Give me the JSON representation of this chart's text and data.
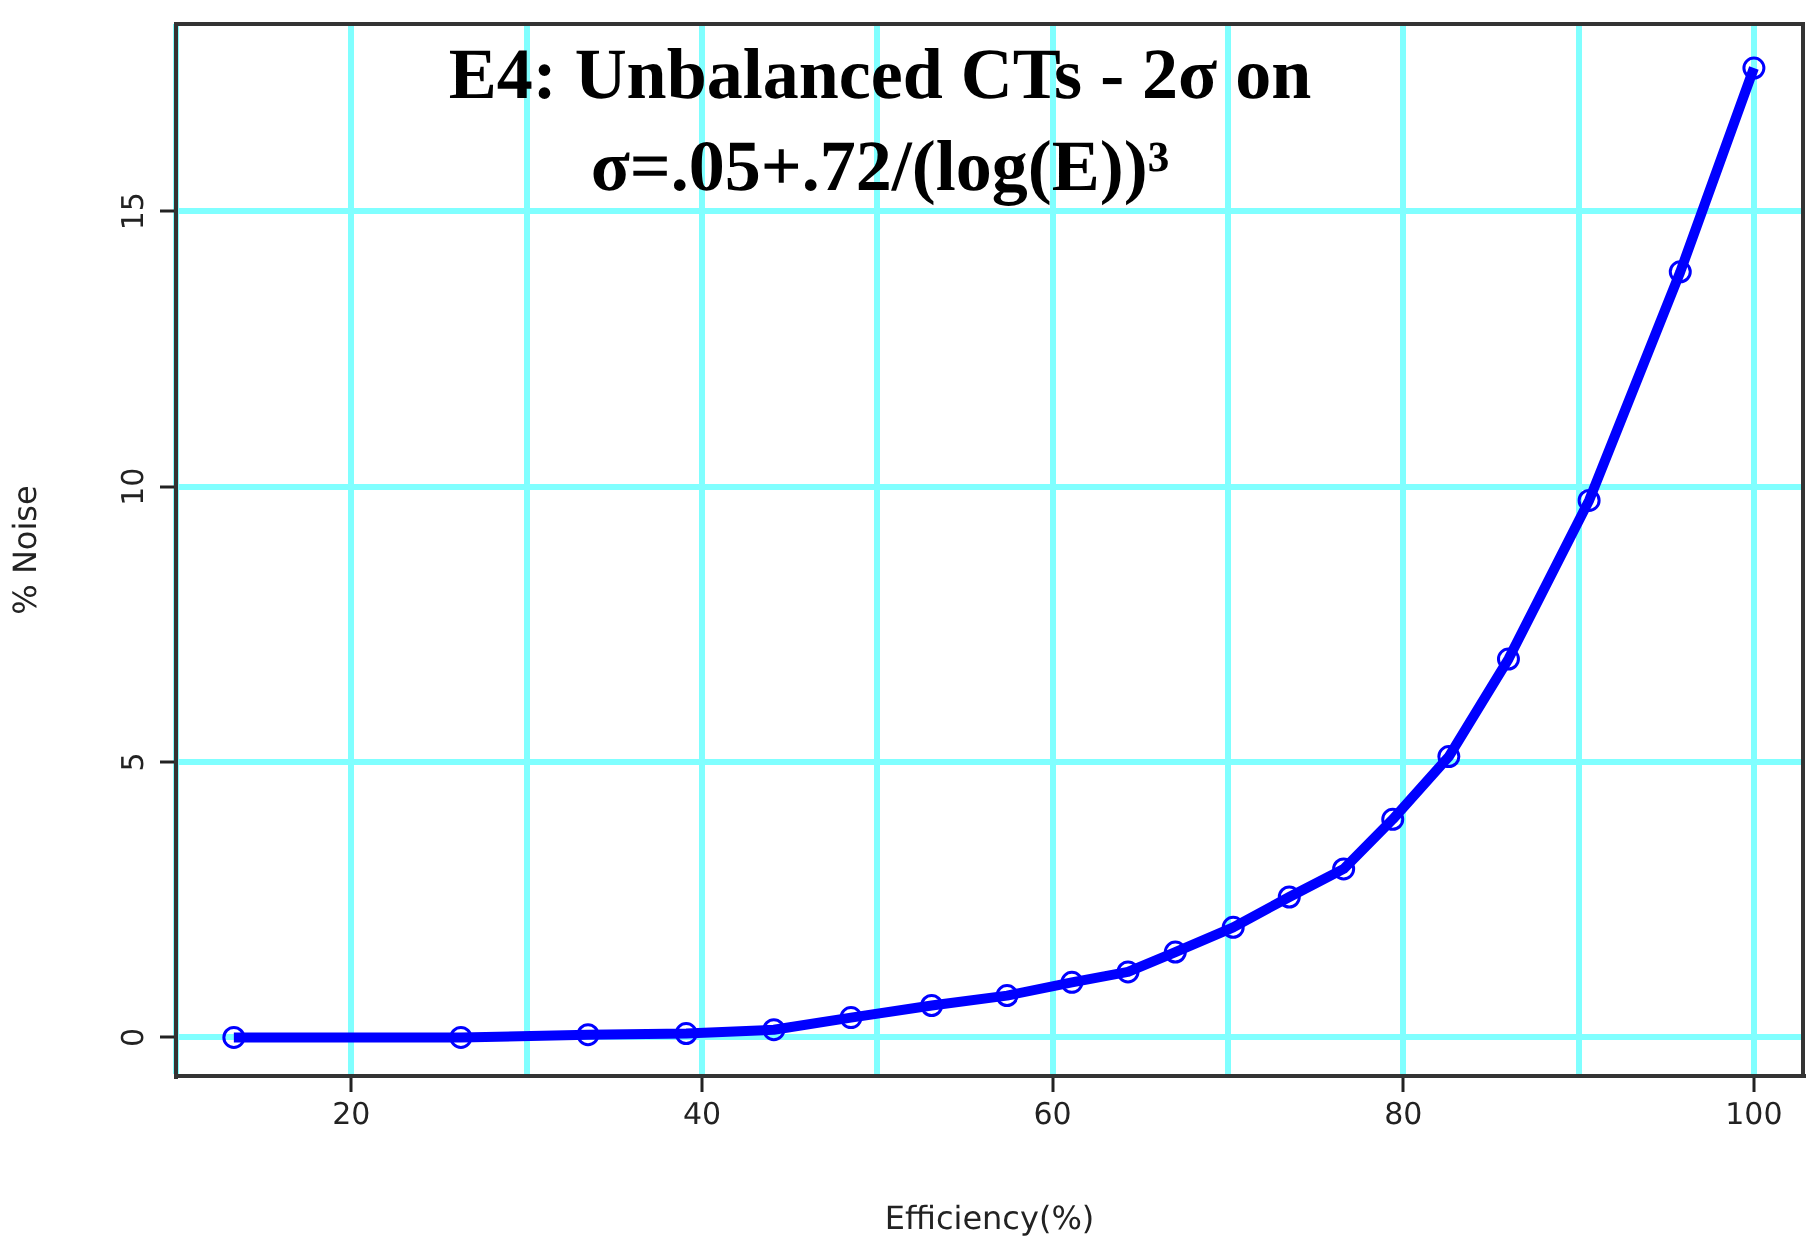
{
  "chart_data": {
    "type": "line",
    "title": "E4: Unbalanced CTs - 2σ on\nσ=.05+.72/(log(E))³",
    "xlabel": "Efficiency(%)",
    "ylabel": "% Noise",
    "x": [
      13.3,
      26.25,
      33.5,
      39.1,
      44.1,
      48.5,
      53.1,
      57.4,
      61.1,
      64.3,
      67.0,
      70.3,
      73.5,
      76.6,
      79.4,
      82.6,
      86.0,
      90.6,
      95.8,
      100
    ],
    "series": [
      {
        "color": "#0000ff",
        "values": [
          0,
          0,
          0.05,
          0.07,
          0.14,
          0.36,
          0.58,
          0.76,
          1.0,
          1.19,
          1.55,
          2.0,
          2.55,
          3.06,
          3.96,
          5.1,
          6.87,
          9.75,
          13.9,
          17.6
        ]
      }
    ],
    "xlim": [
      10,
      102.8
    ],
    "xticks": [
      {
        "value": 10,
        "label": null
      },
      20,
      {
        "value": 30,
        "label": null
      },
      40,
      {
        "value": 50,
        "label": null
      },
      60,
      {
        "value": 70,
        "label": null
      },
      80,
      {
        "value": 90,
        "label": null
      },
      100
    ],
    "ylim": [
      -0.7,
      18.4
    ],
    "yticks": [
      0,
      5,
      10,
      15
    ],
    "grid": true,
    "legend": false,
    "marker": "circle",
    "line_style": "solid"
  }
}
